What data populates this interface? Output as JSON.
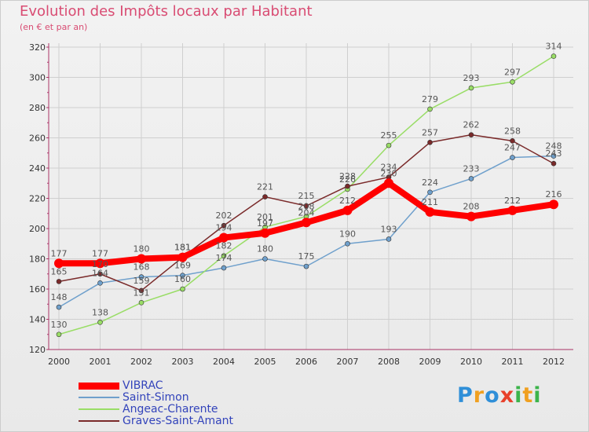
{
  "title": "Evolution des Impôts locaux par Habitant",
  "subtitle": "(en € et par an)",
  "logo": {
    "letters": [
      {
        "ch": "P",
        "color": "#2f8fd8"
      },
      {
        "ch": "r",
        "color": "#f0a020"
      },
      {
        "ch": "o",
        "color": "#2f8fd8"
      },
      {
        "ch": "x",
        "color": "#e8402a"
      },
      {
        "ch": "i",
        "color": "#3cb44b"
      },
      {
        "ch": "t",
        "color": "#f0a020"
      },
      {
        "ch": "i",
        "color": "#3cb44b"
      }
    ]
  },
  "chart_data": {
    "type": "line",
    "x": [
      "2000",
      "2001",
      "2002",
      "2003",
      "2004",
      "2005",
      "2006",
      "2007",
      "2008",
      "2009",
      "2010",
      "2011",
      "2012"
    ],
    "ylim": [
      120,
      320
    ],
    "yticks": [
      "120",
      "140",
      "160",
      "180",
      "200",
      "220",
      "240",
      "260",
      "280",
      "300",
      "320"
    ],
    "grid": true,
    "legend": "bottom-left",
    "series": [
      {
        "name": "VIBRAC",
        "color": "#ff0000",
        "width": 8,
        "values": [
          177,
          177,
          180,
          181,
          194,
          197,
          204,
          212,
          230,
          211,
          208,
          212,
          216
        ],
        "labels": [
          "177",
          "177",
          "180",
          "181",
          "194",
          "197",
          "204",
          "212",
          "230",
          "211",
          "208",
          "212",
          "216"
        ]
      },
      {
        "name": "Saint-Simon",
        "color": "#6fa0cc",
        "width": 1.5,
        "values": [
          148,
          164,
          168,
          169,
          174,
          180,
          175,
          190,
          193,
          224,
          233,
          247,
          248
        ],
        "labels": [
          "148",
          "164",
          "168",
          "169",
          "174",
          "180",
          "175",
          "190",
          "193",
          "224",
          "233",
          "247",
          "248"
        ]
      },
      {
        "name": "Angeac-Charente",
        "color": "#99dd66",
        "width": 1.5,
        "values": [
          130,
          138,
          151,
          160,
          182,
          201,
          208,
          226,
          255,
          279,
          293,
          297,
          314
        ],
        "labels": [
          "130",
          "138",
          "151",
          "160",
          "182",
          "201",
          "208",
          "226",
          "255",
          "279",
          "293",
          "297",
          "314"
        ]
      },
      {
        "name": "Graves-Saint-Amant",
        "color": "#7a2a2a",
        "width": 1.5,
        "values": [
          165,
          170,
          159,
          181,
          202,
          221,
          215,
          228,
          234,
          257,
          262,
          258,
          243
        ],
        "labels": [
          "165",
          "170",
          "159",
          "181",
          "202",
          "221",
          "215",
          "228",
          "234",
          "257",
          "262",
          "258",
          "243"
        ]
      }
    ]
  }
}
